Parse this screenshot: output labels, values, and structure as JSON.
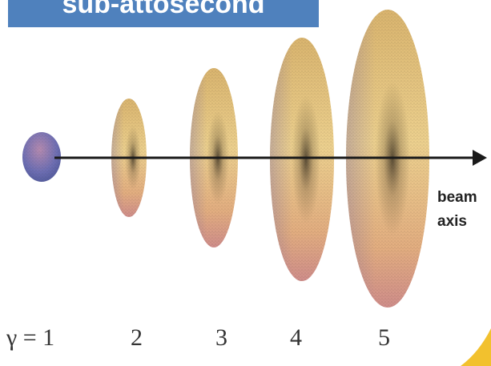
{
  "title": "sub-attosecond",
  "axis": {
    "label_line1": "beam",
    "label_line2": "axis"
  },
  "gamma": {
    "first_label": "γ = 1",
    "labels": [
      "2",
      "3",
      "4",
      "5"
    ]
  },
  "colors": {
    "banner": "#4f81bd",
    "ellipsoid_warm": "#e6c47a",
    "ellipsoid_pink": "#d59a96",
    "ellipsoid_blue": "#5a6cb0",
    "arrow": "#1a1a1a",
    "accent_corner": "#f2c12e"
  }
}
